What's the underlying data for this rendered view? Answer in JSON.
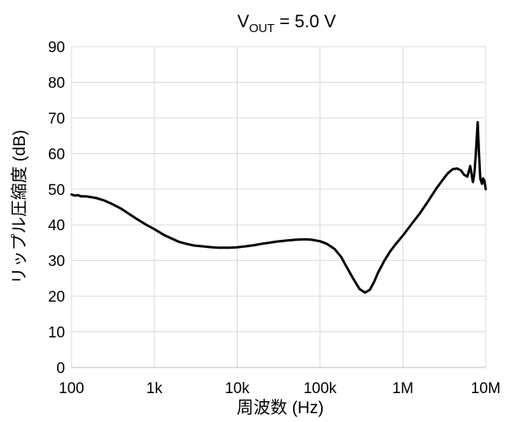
{
  "chart_data": {
    "type": "line",
    "title_main": "V",
    "title_sub": "OUT",
    "title_rest": " = 5.0 V",
    "xlabel": "周波数 (Hz)",
    "ylabel": "リップル圧縮度 (dB)",
    "x_scale": "log",
    "xlim": [
      100,
      10000000
    ],
    "ylim": [
      0,
      90
    ],
    "x_ticks": [
      {
        "value": 100,
        "label": "100"
      },
      {
        "value": 1000,
        "label": "1k"
      },
      {
        "value": 10000,
        "label": "10k"
      },
      {
        "value": 100000,
        "label": "100k"
      },
      {
        "value": 1000000,
        "label": "1M"
      },
      {
        "value": 10000000,
        "label": "10M"
      }
    ],
    "y_ticks": [
      0,
      10,
      20,
      30,
      40,
      50,
      60,
      70,
      80,
      90
    ],
    "grid": true,
    "line_color": "#000000",
    "series": [
      {
        "x": [
          100,
          110,
          120,
          130,
          150,
          170,
          200,
          250,
          300,
          400,
          500,
          600,
          800,
          1000,
          1300,
          1600,
          2000,
          2500,
          3000,
          4000,
          5000,
          6000,
          8000,
          10000,
          13000,
          16000,
          20000,
          25000,
          30000,
          40000,
          50000,
          60000,
          70000,
          80000,
          100000,
          120000,
          150000,
          180000,
          200000,
          250000,
          300000,
          350000,
          400000,
          450000,
          500000,
          600000,
          700000,
          800000,
          1000000,
          1300000,
          1600000,
          2000000,
          2500000,
          3000000,
          3500000,
          4000000,
          4500000,
          5000000,
          5500000,
          6000000,
          6500000,
          7000000,
          7300000,
          7600000,
          8000000,
          8300000,
          8600000,
          9000000,
          9300000,
          9600000,
          10000000
        ],
        "y": [
          48.5,
          48.2,
          48.3,
          48.0,
          48.0,
          47.8,
          47.5,
          46.8,
          46.0,
          44.5,
          43.0,
          41.8,
          40.0,
          38.8,
          37.2,
          36.2,
          35.2,
          34.6,
          34.2,
          33.9,
          33.7,
          33.6,
          33.6,
          33.7,
          34.0,
          34.3,
          34.7,
          35.0,
          35.3,
          35.6,
          35.8,
          35.9,
          35.9,
          35.8,
          35.4,
          34.7,
          33.2,
          31.0,
          29.0,
          25.0,
          22.0,
          21.0,
          21.8,
          24.0,
          26.5,
          30.0,
          32.5,
          34.3,
          37.0,
          40.5,
          43.2,
          46.5,
          50.0,
          52.5,
          54.5,
          55.6,
          55.8,
          55.3,
          54.0,
          53.5,
          56.5,
          52.0,
          54.5,
          60.0,
          68.8,
          60.0,
          53.0,
          51.5,
          53.0,
          52.5,
          50.0
        ]
      }
    ]
  }
}
